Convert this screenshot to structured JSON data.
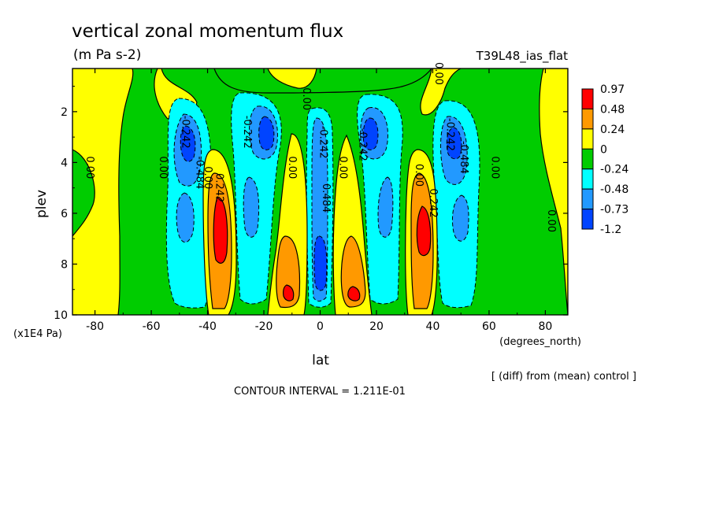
{
  "chart_data": {
    "type": "heatmap",
    "subtype": "filled-contour",
    "title": "vertical zonal momentum flux",
    "units": "(m Pa s-2)",
    "run_label": "T39L48_ias_flat",
    "xlabel": "lat",
    "x_units": "(degrees_north)",
    "ylabel": "plev",
    "y_units": "(x1E4 Pa)",
    "diff_note": "[ (diff) from (mean) control ]",
    "contour_interval_text": "CONTOUR INTERVAL = 1.211E-01",
    "xlim": [
      -88,
      88
    ],
    "ylim": [
      10,
      0.3
    ],
    "x_ticks": [
      -80,
      -60,
      -40,
      -20,
      0,
      20,
      40,
      60,
      80
    ],
    "y_ticks": [
      2,
      4,
      6,
      8,
      10
    ],
    "colorbar": {
      "labels": [
        "0.97",
        "0.48",
        "0.24",
        "0",
        "-0.24",
        "-0.48",
        "-0.73",
        "-1.2"
      ],
      "colors": [
        "#ff0000",
        "#ff9900",
        "#ffff00",
        "#00cc00",
        "#00ffff",
        "#2299ff",
        "#0044ff"
      ]
    },
    "features": [
      {
        "lat": -48,
        "plev": 3.0,
        "value": -0.73,
        "kind": "min"
      },
      {
        "lat": -48,
        "plev": 6.0,
        "value": -0.48,
        "kind": "min"
      },
      {
        "lat": -37,
        "plev": 6.5,
        "value": 0.97,
        "kind": "max"
      },
      {
        "lat": -18,
        "plev": 2.8,
        "value": -0.73,
        "kind": "min"
      },
      {
        "lat": -20,
        "plev": 5.5,
        "value": -0.48,
        "kind": "min"
      },
      {
        "lat": -12,
        "plev": 9.0,
        "value": 0.97,
        "kind": "max"
      },
      {
        "lat": 0,
        "plev": 8.5,
        "value": -1.2,
        "kind": "min"
      },
      {
        "lat": 12,
        "plev": 9.0,
        "value": 0.97,
        "kind": "max"
      },
      {
        "lat": 18,
        "plev": 2.8,
        "value": -0.73,
        "kind": "min"
      },
      {
        "lat": 20,
        "plev": 5.5,
        "value": -0.48,
        "kind": "min"
      },
      {
        "lat": 37,
        "plev": 6.5,
        "value": 0.97,
        "kind": "max"
      },
      {
        "lat": 48,
        "plev": 3.0,
        "value": -0.73,
        "kind": "min"
      },
      {
        "lat": 48,
        "plev": 6.0,
        "value": -0.48,
        "kind": "min"
      }
    ],
    "contour_labels": [
      {
        "text": "0.00",
        "lat": -83,
        "plev": 4.2
      },
      {
        "text": "0.00",
        "lat": -57,
        "plev": 4.2
      },
      {
        "text": "-0.242",
        "lat": -49,
        "plev": 2.8
      },
      {
        "text": "-0.484",
        "lat": -44,
        "plev": 4.4
      },
      {
        "text": "0.00",
        "lat": -41,
        "plev": 4.6
      },
      {
        "text": "0.242",
        "lat": -37,
        "plev": 5.0
      },
      {
        "text": "-0.242",
        "lat": -27,
        "plev": 2.8
      },
      {
        "text": "0.00",
        "lat": -11,
        "plev": 4.2
      },
      {
        "text": "0.00",
        "lat": -6,
        "plev": 1.5
      },
      {
        "text": "-0.242",
        "lat": 0,
        "plev": 3.2
      },
      {
        "text": "0.484",
        "lat": 1,
        "plev": 5.4
      },
      {
        "text": "0.00",
        "lat": 7,
        "plev": 4.2
      },
      {
        "text": "-0.242",
        "lat": 14,
        "plev": 3.3
      },
      {
        "text": "0.00",
        "lat": 34,
        "plev": 4.5
      },
      {
        "text": "0.242",
        "lat": 39,
        "plev": 5.6
      },
      {
        "text": "-0.242",
        "lat": 45,
        "plev": 2.9
      },
      {
        "text": "-0.484",
        "lat": 50,
        "plev": 3.8
      },
      {
        "text": "0.00",
        "lat": 61,
        "plev": 4.2
      },
      {
        "text": "0.00",
        "lat": 81,
        "plev": 6.3
      },
      {
        "text": "0.00",
        "lat": 41,
        "plev": 0.5
      }
    ]
  }
}
